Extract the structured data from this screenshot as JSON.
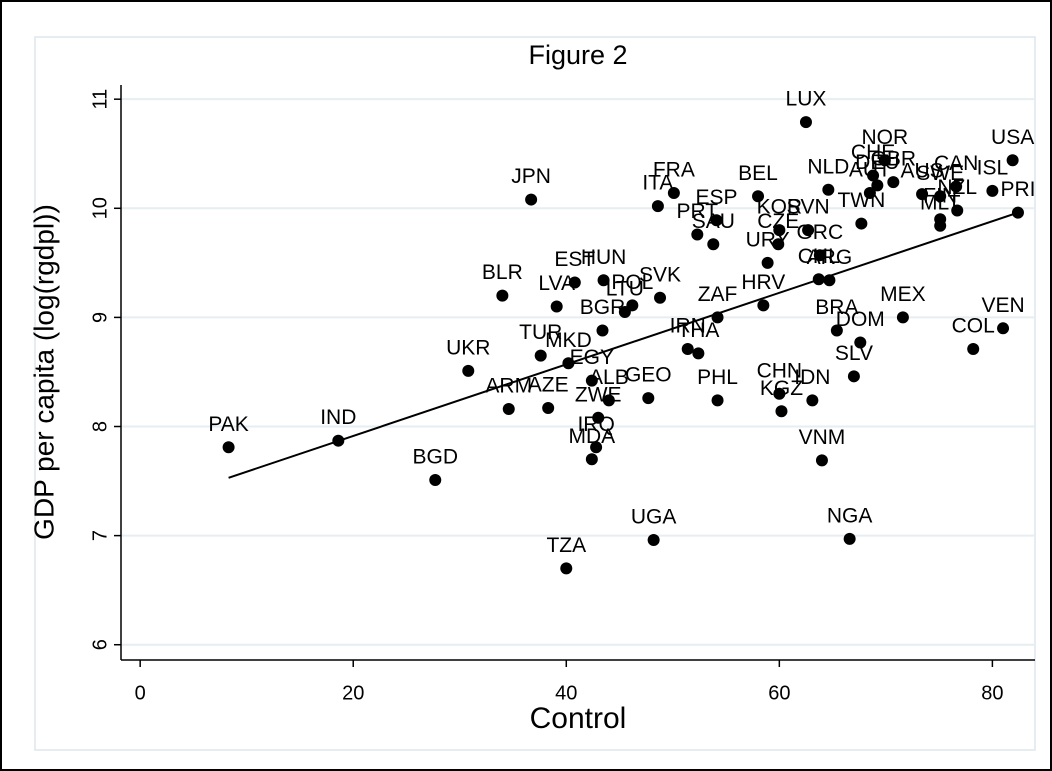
{
  "chart_data": {
    "type": "scatter",
    "title": "Figure 2",
    "x_label": "Control",
    "y_label": "GDP per capita (log(rgdpl))",
    "xlim": [
      -1.8,
      84
    ],
    "ylim": [
      5.86,
      11.13
    ],
    "xticks": [
      0,
      20,
      40,
      60,
      80
    ],
    "yticks": [
      6,
      7,
      8,
      9,
      10,
      11
    ],
    "grid": true,
    "color": "#000000",
    "labels": [
      "PAK",
      "IND",
      "BGD",
      "UKR",
      "ARM",
      "AZE",
      "TUR",
      "MKD",
      "EGY",
      "ALB",
      "GEO",
      "ZWE",
      "IRQ",
      "MDA",
      "TZA",
      "UGA",
      "BLR",
      "LVA",
      "EST",
      "HUN",
      "POL",
      "LTU",
      "SVK",
      "BGR",
      "JPN",
      "FRA",
      "ITA",
      "ESP",
      "PRT",
      "SAU",
      "BEL",
      "KOR",
      "SVN",
      "CZE",
      "GRC",
      "URY",
      "CHL",
      "ARG",
      "HRV",
      "ZAF",
      "IRN",
      "THA",
      "PHL",
      "CHN",
      "KGZ",
      "IDN",
      "SLV",
      "VNM",
      "NGA",
      "BRA",
      "DOM",
      "MEX",
      "COL",
      "VEN",
      "PRI",
      "USA",
      "ISL",
      "LUX",
      "NLD",
      "TWN",
      "NOR",
      "SWE",
      "CAN",
      "FIN",
      "AUS",
      "GBR",
      "CHE",
      "DEU",
      "AUT",
      "MLT",
      "NZL"
    ],
    "x": [
      8.3,
      18.6,
      27.7,
      30.8,
      34.6,
      38.3,
      37.6,
      40.2,
      42.4,
      44.0,
      47.7,
      43.0,
      42.8,
      42.4,
      40.0,
      48.2,
      34.0,
      39.1,
      40.8,
      43.5,
      46.2,
      45.5,
      48.8,
      43.4,
      36.7,
      50.1,
      48.6,
      54.1,
      52.3,
      53.8,
      58.0,
      60.0,
      62.7,
      59.9,
      63.8,
      58.9,
      63.7,
      64.7,
      58.5,
      54.2,
      51.4,
      52.4,
      54.2,
      60.0,
      60.2,
      63.1,
      67.0,
      64.0,
      66.6,
      65.4,
      67.6,
      71.6,
      78.2,
      81.0,
      82.4,
      81.9,
      80.0,
      62.5,
      64.6,
      67.7,
      69.9,
      75.1,
      76.6,
      75.1,
      73.4,
      70.7,
      68.8,
      69.2,
      68.5,
      75.1,
      76.7
    ],
    "y": [
      7.81,
      7.87,
      7.51,
      8.51,
      8.16,
      8.17,
      8.65,
      8.58,
      8.42,
      8.24,
      8.26,
      8.08,
      7.81,
      7.7,
      6.7,
      6.96,
      9.2,
      9.1,
      9.32,
      9.34,
      9.11,
      9.05,
      9.18,
      8.88,
      10.08,
      10.14,
      10.02,
      9.89,
      9.76,
      9.67,
      10.11,
      9.8,
      9.8,
      9.67,
      9.57,
      9.5,
      9.35,
      9.34,
      9.11,
      9.0,
      8.71,
      8.67,
      8.24,
      8.3,
      8.14,
      8.24,
      8.46,
      7.69,
      6.97,
      8.88,
      8.77,
      9.0,
      8.71,
      8.9,
      9.96,
      10.44,
      10.16,
      10.79,
      10.17,
      9.86,
      10.44,
      10.11,
      10.2,
      9.9,
      10.13,
      10.24,
      10.3,
      10.21,
      10.14,
      9.84,
      9.98
    ],
    "fit": {
      "x": [
        8.3,
        82.4
      ],
      "y": [
        7.53,
        9.96
      ]
    }
  }
}
